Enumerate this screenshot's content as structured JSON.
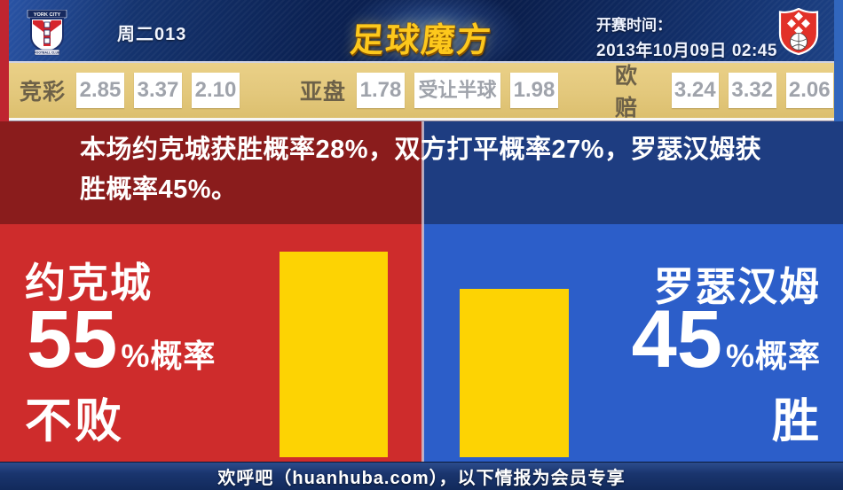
{
  "header": {
    "match_code": "周二013",
    "brand": "足球魔方",
    "kickoff_label": "开赛时间：",
    "kickoff_time": "2013年10月09日 02:45",
    "home_crest_title": "YORK CITY",
    "home_crest_ribbon": "FOOTBALL CLUB"
  },
  "odds": {
    "jingcai_label": "竞彩",
    "jingcai": [
      "2.85",
      "3.37",
      "2.10"
    ],
    "yapan_label": "亚盘",
    "yapan_home": "1.78",
    "yapan_handicap": "受让半球",
    "yapan_away": "1.98",
    "oupei_label": "欧赔",
    "oupei": [
      "3.24",
      "3.32",
      "2.06"
    ]
  },
  "summary": "本场约克城获胜概率28%，双方打平概率27%，罗瑟汉姆获胜概率45%。",
  "home_panel": {
    "team": "约克城",
    "value": "55",
    "suffix": "%概率",
    "outcome": "不败"
  },
  "away_panel": {
    "team": "罗瑟汉姆",
    "value": "45",
    "suffix": "%概率",
    "outcome": "胜"
  },
  "footer": "欢呼吧（huanhuba.com），以下情报为会员专享",
  "colors": {
    "home_dark": "#8a1c1c",
    "home_bright": "#ce2c2c",
    "away_dark": "#1e3d81",
    "away_bright": "#2c5ec9",
    "odds_bar": "#e3c87c",
    "bar_yellow": "#fdd303",
    "brand_gold": "#fdc81c"
  },
  "chart_data": {
    "type": "bar",
    "categories": [
      "约克城不败",
      "罗瑟汉姆胜"
    ],
    "values": [
      55,
      45
    ],
    "unit": "%",
    "ylim": [
      0,
      60
    ],
    "bar_color": "#fdd303",
    "pixels_per_percent": 4.22
  }
}
